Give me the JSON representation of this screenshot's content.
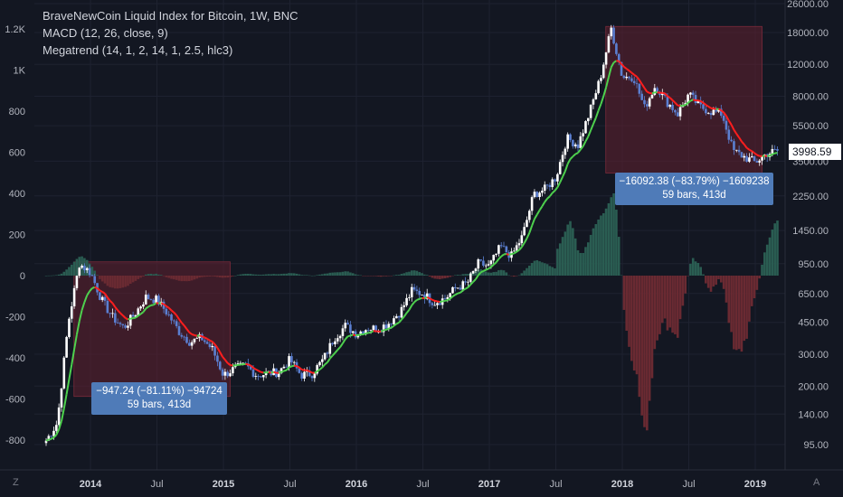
{
  "legend": {
    "title": "BraveNewCoin Liquid Index for Bitcoin, 1W, BNC",
    "macd": "MACD (12, 26, close, 9)",
    "megatrend": "Megatrend (14, 1, 2, 14, 1, 2.5, hlc3)"
  },
  "current_price_label": "3998.59",
  "corner_left": "Z",
  "corner_right": "A",
  "measure_boxes": [
    {
      "line1": "−947.24 (−81.11%) −94724",
      "line2": "59 bars, 413d"
    },
    {
      "line1": "−16092.38 (−83.79%) −1609238",
      "line2": "59 bars, 413d"
    }
  ],
  "colors": {
    "background": "#131722",
    "up_candle": "#ffffff",
    "down_candle": "#5b7fd1",
    "trend_up": "#4ed14e",
    "trend_down": "#ff1e1e",
    "hist_pos": "#2a5d52",
    "hist_neg": "#6a2a32",
    "box_fill": "#5c1f2e",
    "axis_text": "#b2b5be"
  },
  "chart_data": {
    "type": "candlestick",
    "timeframe": "1W",
    "price_scale": "log",
    "x_ticks": [
      "2014",
      "Jul",
      "2015",
      "Jul",
      "2016",
      "Jul",
      "2017",
      "Jul",
      "2018",
      "Jul",
      "2019"
    ],
    "y_right_ticks": [
      95,
      140,
      200,
      300,
      450,
      650,
      950,
      1450,
      2250,
      3500,
      5500,
      8000,
      12000,
      18000,
      26000
    ],
    "y_right_tick_labels": [
      "95.00",
      "140.00",
      "200.00",
      "300.00",
      "450.00",
      "650.00",
      "950.00",
      "1450.00",
      "2250.00",
      "3500.00",
      "5500.00",
      "8000.00",
      "12000.00",
      "18000.00",
      "26000.00"
    ],
    "y_left_ticks": [
      -800,
      -600,
      -400,
      -200,
      0,
      200,
      400,
      600,
      800,
      1000,
      1200
    ],
    "y_left_tick_labels": [
      "-800",
      "-600",
      "-400",
      "-200",
      "0",
      "200",
      "400",
      "600",
      "800",
      "1K",
      "1.2K"
    ],
    "price_path": [
      [
        "2013-09",
        100
      ],
      [
        "2013-10",
        125
      ],
      [
        "2013-11",
        450
      ],
      [
        "2013-12",
        950
      ],
      [
        "2014-01",
        850
      ],
      [
        "2014-02",
        600
      ],
      [
        "2014-03",
        480
      ],
      [
        "2014-04",
        420
      ],
      [
        "2014-05",
        500
      ],
      [
        "2014-06",
        620
      ],
      [
        "2014-07",
        600
      ],
      [
        "2014-08",
        500
      ],
      [
        "2014-09",
        400
      ],
      [
        "2014-10",
        350
      ],
      [
        "2014-11",
        370
      ],
      [
        "2014-12",
        320
      ],
      [
        "2015-01",
        230
      ],
      [
        "2015-02",
        250
      ],
      [
        "2015-03",
        260
      ],
      [
        "2015-04",
        230
      ],
      [
        "2015-05",
        235
      ],
      [
        "2015-06",
        240
      ],
      [
        "2015-07",
        280
      ],
      [
        "2015-08",
        230
      ],
      [
        "2015-09",
        235
      ],
      [
        "2015-10",
        280
      ],
      [
        "2015-11",
        370
      ],
      [
        "2015-12",
        430
      ],
      [
        "2016-01",
        390
      ],
      [
        "2016-02",
        420
      ],
      [
        "2016-03",
        415
      ],
      [
        "2016-04",
        450
      ],
      [
        "2016-05",
        520
      ],
      [
        "2016-06",
        670
      ],
      [
        "2016-07",
        650
      ],
      [
        "2016-08",
        580
      ],
      [
        "2016-09",
        610
      ],
      [
        "2016-10",
        700
      ],
      [
        "2016-11",
        740
      ],
      [
        "2016-12",
        950
      ],
      [
        "2017-01",
        920
      ],
      [
        "2017-02",
        1180
      ],
      [
        "2017-03",
        1050
      ],
      [
        "2017-04",
        1350
      ],
      [
        "2017-05",
        2300
      ],
      [
        "2017-06",
        2450
      ],
      [
        "2017-07",
        2850
      ],
      [
        "2017-08",
        4700
      ],
      [
        "2017-09",
        4300
      ],
      [
        "2017-10",
        6400
      ],
      [
        "2017-11",
        10000
      ],
      [
        "2017-12",
        19000
      ],
      [
        "2018-01",
        10200
      ],
      [
        "2018-02",
        10300
      ],
      [
        "2018-03",
        6900
      ],
      [
        "2018-04",
        9200
      ],
      [
        "2018-05",
        7500
      ],
      [
        "2018-06",
        6400
      ],
      [
        "2018-07",
        8200
      ],
      [
        "2018-08",
        7000
      ],
      [
        "2018-09",
        6600
      ],
      [
        "2018-10",
        6400
      ],
      [
        "2018-11",
        4000
      ],
      [
        "2018-12",
        3700
      ],
      [
        "2019-01",
        3450
      ],
      [
        "2019-02",
        3850
      ],
      [
        "2019-03",
        4000
      ]
    ],
    "last_close": 3998.59,
    "drawdowns": [
      {
        "from": "2013-12",
        "to": "2015-01",
        "change": -947.24,
        "change_pct": -81.11,
        "bars": 59,
        "days": 413
      },
      {
        "from": "2017-12",
        "to": "2019-01",
        "change": -16092.38,
        "change_pct": -83.79,
        "bars": 59,
        "days": 413
      }
    ]
  }
}
